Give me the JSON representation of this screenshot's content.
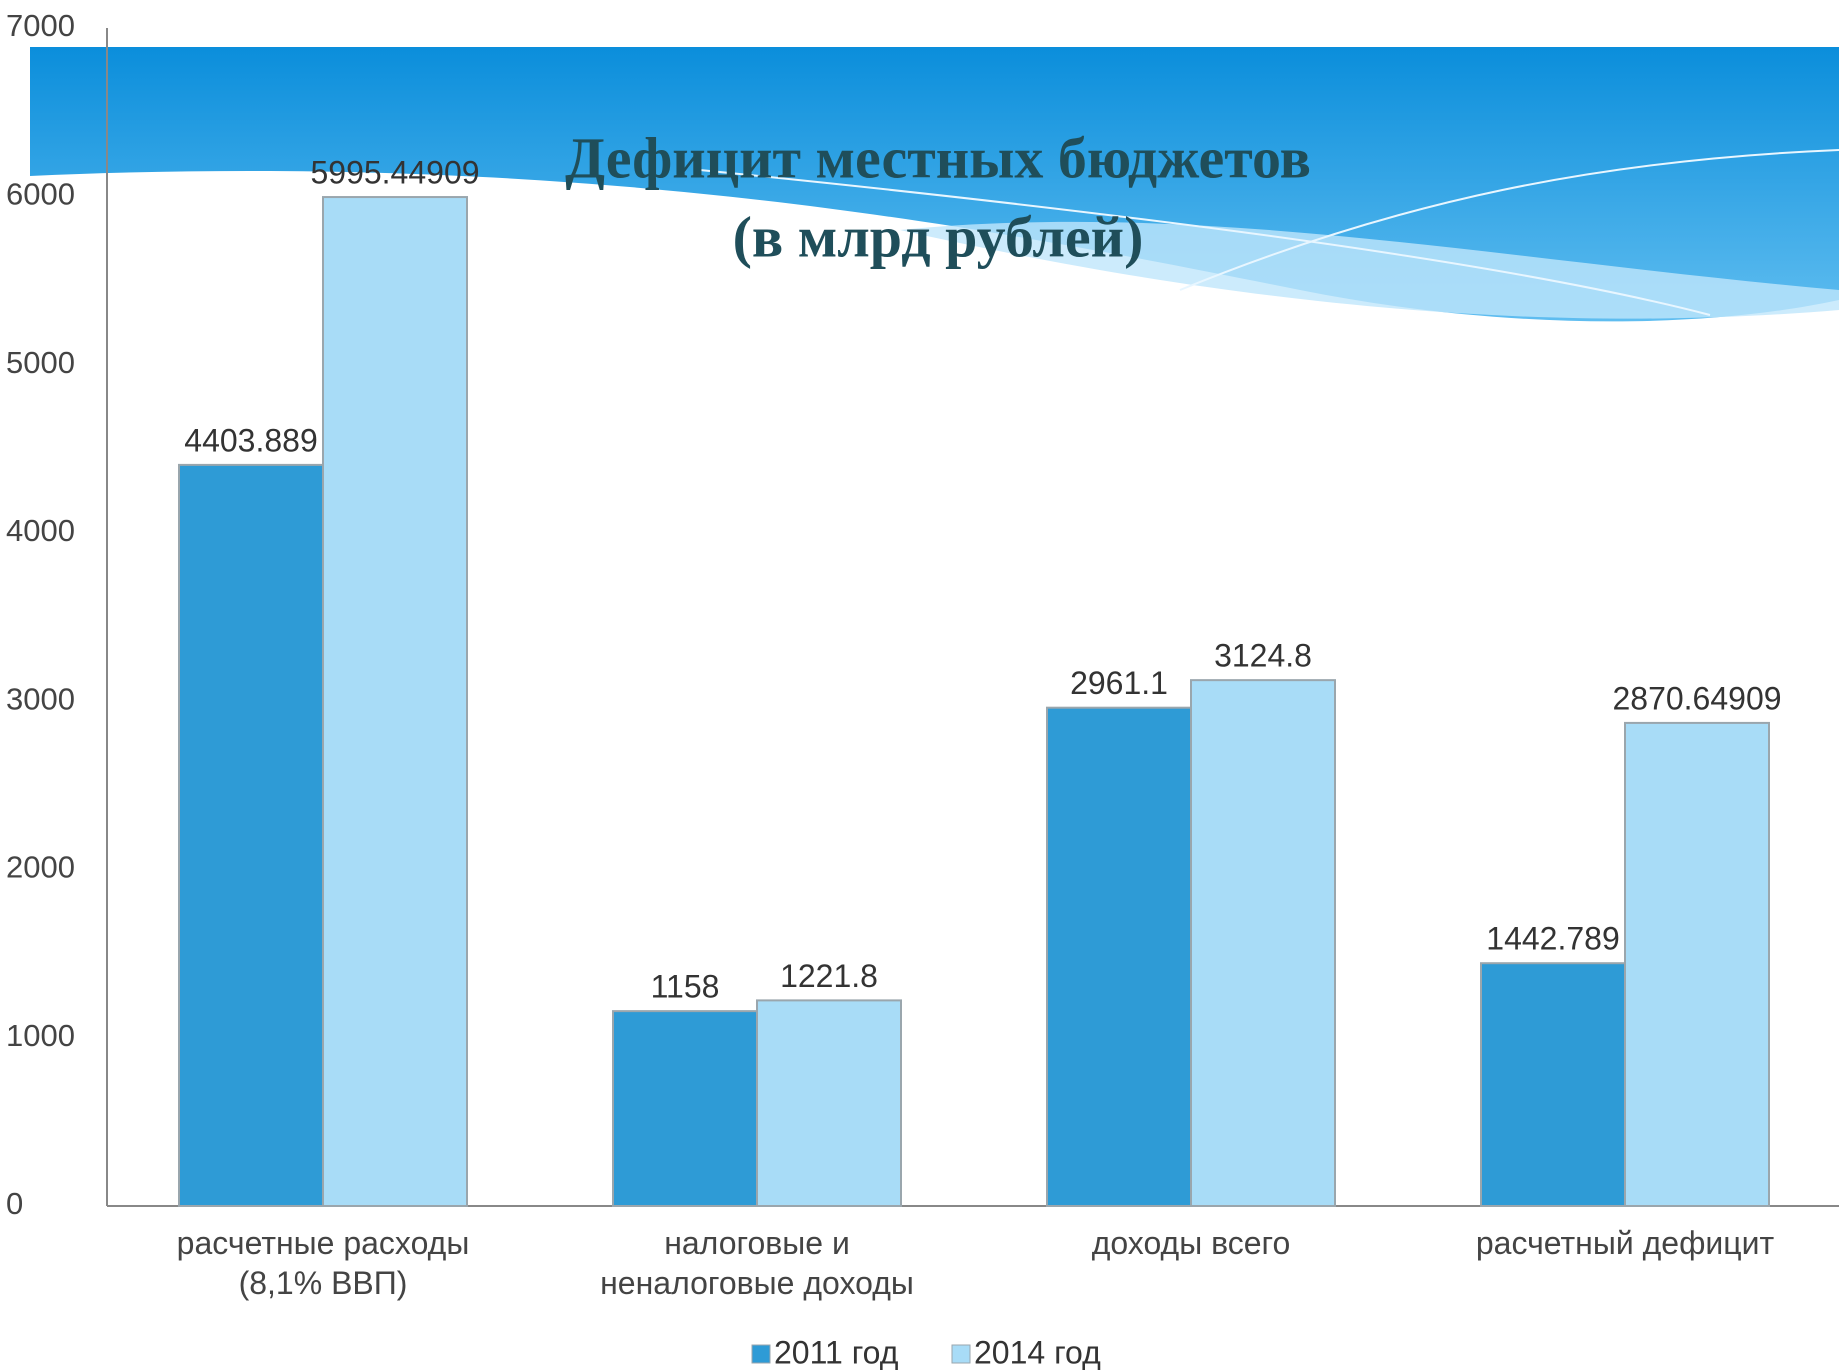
{
  "chart_data": {
    "type": "bar",
    "title": "Дефицит местных бюджетов",
    "subtitle": "(в млрд рублей)",
    "categories": [
      "расчетные расходы\n(8,1% ВВП)",
      "налоговые и\nненалоговые доходы",
      "доходы всего",
      "расчетный дефицит"
    ],
    "series": [
      {
        "name": "2011 год",
        "color": "#2e9bd6",
        "values": [
          4403.889,
          1158,
          2961.1,
          1442.789
        ]
      },
      {
        "name": "2014 год",
        "color": "#a8dcf7",
        "values": [
          5995.44909,
          1221.8,
          3124.8,
          2870.64909
        ]
      }
    ],
    "ylim": [
      0,
      7000
    ],
    "yticks": [
      0,
      1000,
      2000,
      3000,
      4000,
      5000,
      6000,
      7000
    ],
    "grid": false,
    "legend": "bottom"
  }
}
